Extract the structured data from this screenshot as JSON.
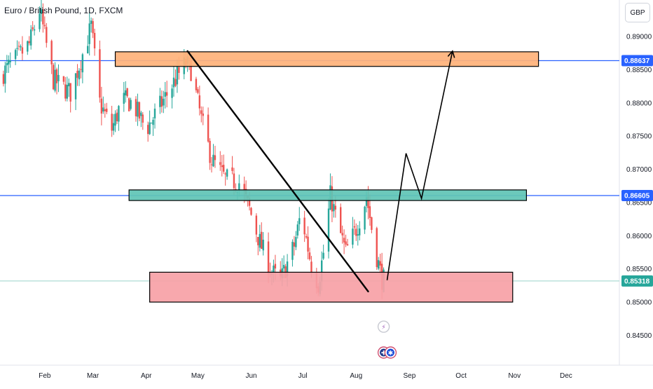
{
  "header": {
    "title": "Euro / British Pound, 1D, FXCM",
    "currency": "GBP"
  },
  "colors": {
    "up": "#26a69a",
    "down": "#ef5350",
    "level_line": "#2962ff",
    "current_line": "#9ad3ca",
    "resistance_zone": "#ffb27a",
    "mid_zone": "#5fc4b5",
    "support_zone": "#f7a1a6",
    "badge_blue": "#2962ff",
    "badge_green": "#26a69a"
  },
  "chart_data": {
    "type": "candlestick",
    "title": "Euro / British Pound, 1D, FXCM",
    "currency": "GBP",
    "ylim": [
      0.8405,
      0.8955
    ],
    "y_ticks": [
      0.845,
      0.85,
      0.855,
      0.86,
      0.865,
      0.87,
      0.875,
      0.88,
      0.885,
      0.89
    ],
    "y_tick_labels": [
      "0.84500",
      "0.85000",
      "0.85500",
      "0.86000",
      "0.86500",
      "0.87000",
      "0.87500",
      "0.88000",
      "0.88500",
      "0.89000"
    ],
    "x_labels": [
      {
        "label": "Feb",
        "day": 31
      },
      {
        "label": "Mar",
        "day": 59
      },
      {
        "label": "Apr",
        "day": 90
      },
      {
        "label": "May",
        "day": 120
      },
      {
        "label": "Jun",
        "day": 151
      },
      {
        "label": "Jul",
        "day": 181
      },
      {
        "label": "Aug",
        "day": 212
      },
      {
        "label": "Sep",
        "day": 243
      },
      {
        "label": "Oct",
        "day": 273
      },
      {
        "label": "Nov",
        "day": 304
      },
      {
        "label": "Dec",
        "day": 334
      }
    ],
    "day_range": [
      5,
      365
    ],
    "price_levels": [
      {
        "label": "0.88637",
        "value": 0.88637,
        "style": "blue"
      },
      {
        "label": "0.86605",
        "value": 0.86605,
        "style": "blue"
      },
      {
        "label": "0.85318",
        "value": 0.85318,
        "style": "green"
      }
    ],
    "zones": [
      {
        "name": "resistance-zone",
        "day_start": 72,
        "day_end": 318,
        "low": 0.8855,
        "high": 0.8877,
        "color": "resistance_zone"
      },
      {
        "name": "mid-zone",
        "day_start": 80,
        "day_end": 311,
        "low": 0.8653,
        "high": 0.8669,
        "color": "mid_zone"
      },
      {
        "name": "support-zone",
        "day_start": 92,
        "day_end": 303,
        "low": 0.85,
        "high": 0.8545,
        "color": "support_zone"
      }
    ],
    "trendline": [
      {
        "day": 114,
        "price": 0.8878
      },
      {
        "day": 219,
        "price": 0.8516
      }
    ],
    "projection": [
      {
        "day": 230,
        "price": 0.8533
      },
      {
        "day": 241,
        "price": 0.8724
      },
      {
        "day": 250,
        "price": 0.8656
      },
      {
        "day": 268,
        "price": 0.8878
      }
    ],
    "keypoints": [
      {
        "day": 5,
        "price": 0.884
      },
      {
        "day": 22,
        "price": 0.8888
      },
      {
        "day": 28,
        "price": 0.894
      },
      {
        "day": 36,
        "price": 0.8835
      },
      {
        "day": 46,
        "price": 0.8815
      },
      {
        "day": 58,
        "price": 0.8915
      },
      {
        "day": 63,
        "price": 0.88
      },
      {
        "day": 70,
        "price": 0.876
      },
      {
        "day": 76,
        "price": 0.8805
      },
      {
        "day": 82,
        "price": 0.88
      },
      {
        "day": 90,
        "price": 0.876
      },
      {
        "day": 98,
        "price": 0.8795
      },
      {
        "day": 108,
        "price": 0.884
      },
      {
        "day": 113,
        "price": 0.886
      },
      {
        "day": 116,
        "price": 0.885
      },
      {
        "day": 122,
        "price": 0.8775
      },
      {
        "day": 128,
        "price": 0.8715
      },
      {
        "day": 136,
        "price": 0.8685
      },
      {
        "day": 144,
        "price": 0.868
      },
      {
        "day": 150,
        "price": 0.864
      },
      {
        "day": 156,
        "price": 0.859
      },
      {
        "day": 163,
        "price": 0.8545
      },
      {
        "day": 168,
        "price": 0.8532
      },
      {
        "day": 176,
        "price": 0.8585
      },
      {
        "day": 180,
        "price": 0.8635
      },
      {
        "day": 186,
        "price": 0.8555
      },
      {
        "day": 190,
        "price": 0.8528
      },
      {
        "day": 194,
        "price": 0.859
      },
      {
        "day": 197,
        "price": 0.866
      },
      {
        "day": 202,
        "price": 0.861
      },
      {
        "day": 206,
        "price": 0.8575
      },
      {
        "day": 212,
        "price": 0.861
      },
      {
        "day": 216,
        "price": 0.864
      },
      {
        "day": 218,
        "price": 0.866
      },
      {
        "day": 223,
        "price": 0.858
      },
      {
        "day": 227,
        "price": 0.8535
      },
      {
        "day": 229,
        "price": 0.8532
      }
    ],
    "event_icons": [
      {
        "name": "lightning-event",
        "day": 228,
        "price": 0.8463,
        "glyph": "⚡"
      },
      {
        "name": "uk-flag-event",
        "day": 228,
        "price": 0.8424,
        "glyph": "✚"
      },
      {
        "name": "eu-flag-event",
        "day": 232,
        "price": 0.8424,
        "glyph": "✱"
      }
    ]
  }
}
